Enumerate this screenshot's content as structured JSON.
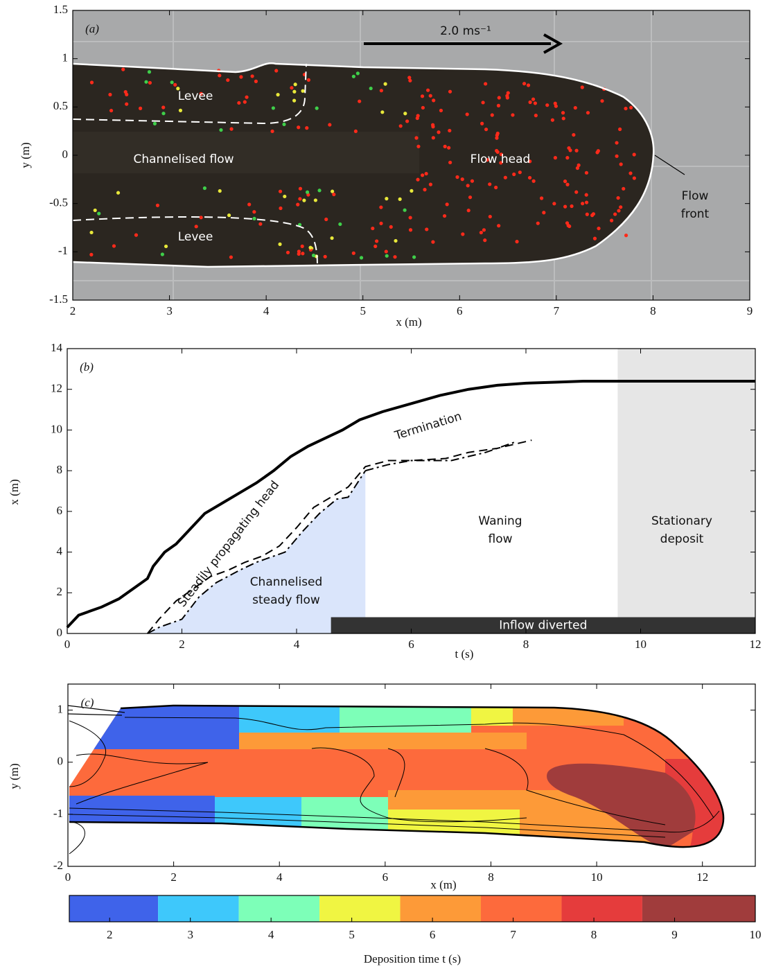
{
  "chart_data": [
    {
      "type": "photo",
      "label": "(a)",
      "xlabel": "x (m)",
      "ylabel": "y (m)",
      "xlim": [
        2,
        9
      ],
      "ylim": [
        -1.5,
        1.5
      ],
      "xticks": [
        2,
        3,
        4,
        5,
        6,
        7,
        8,
        9
      ],
      "yticks": [
        -1.5,
        -1,
        -0.5,
        0,
        0.5,
        1,
        1.5
      ],
      "annotations": [
        [
          "Levee"
        ],
        [
          "Levee"
        ],
        [
          "Channelised flow"
        ],
        [
          "Flow head"
        ],
        [
          "Flow",
          "front"
        ],
        [
          "2.0 ms⁻¹"
        ]
      ]
    },
    {
      "type": "line",
      "label": "(b)",
      "xlabel": "t (s)",
      "ylabel": "x (m)",
      "xlim": [
        0,
        12
      ],
      "ylim": [
        0,
        14
      ],
      "xticks": [
        0,
        2,
        4,
        6,
        8,
        10,
        12
      ],
      "yticks": [
        0,
        2,
        4,
        6,
        8,
        10,
        12,
        14
      ],
      "series": [
        {
          "color": "#000000",
          "dash": "solid",
          "width": 4,
          "x": [
            0,
            0.2,
            0.6,
            0.9,
            1.2,
            1.4,
            1.5,
            1.7,
            1.9,
            2.1,
            2.4,
            2.7,
            3.0,
            3.3,
            3.6,
            3.9,
            4.2,
            4.5,
            4.8,
            5.1,
            5.5,
            6,
            6.5,
            7,
            7.5,
            8,
            8.5,
            9,
            9.5,
            10,
            11,
            12
          ],
          "values": [
            0.3,
            0.9,
            1.3,
            1.7,
            2.3,
            2.7,
            3.3,
            4.0,
            4.4,
            5.0,
            5.9,
            6.4,
            6.9,
            7.4,
            8.0,
            8.7,
            9.2,
            9.6,
            10.0,
            10.5,
            10.9,
            11.3,
            11.7,
            12.0,
            12.2,
            12.3,
            12.35,
            12.4,
            12.4,
            12.4,
            12.4,
            12.4
          ]
        },
        {
          "color": "#000000",
          "dash": "dashed",
          "width": 2,
          "x": [
            1.4,
            1.6,
            1.9,
            2.2,
            2.5,
            2.8,
            3.1,
            3.4,
            3.7,
            4.0,
            4.3,
            4.6,
            4.9,
            5.2,
            5.6,
            6.0,
            6.6,
            7.0,
            7.5,
            8.1
          ],
          "values": [
            0,
            0.7,
            1.6,
            2.2,
            2.8,
            3.1,
            3.5,
            3.8,
            4.3,
            5.2,
            6.2,
            6.7,
            7.2,
            8.2,
            8.5,
            8.5,
            8.6,
            8.9,
            9.1,
            9.5
          ]
        },
        {
          "color": "#000000",
          "dash": "dashdot",
          "width": 2,
          "fill": "#dae5fb",
          "x": [
            1.4,
            1.6,
            2.0,
            2.3,
            2.6,
            3.0,
            3.3,
            3.6,
            3.8,
            4.1,
            4.4,
            4.7,
            4.9,
            5.2
          ],
          "values": [
            0,
            0.3,
            0.7,
            1.8,
            2.5,
            3.1,
            3.5,
            3.8,
            4.0,
            5.0,
            5.9,
            6.6,
            6.7,
            8.0
          ]
        },
        {
          "color": "#000000",
          "dash": "dashdot",
          "width": 2,
          "x": [
            5.2,
            5.6,
            6.0,
            6.7,
            7.3,
            7.8
          ],
          "values": [
            8.0,
            8.3,
            8.5,
            8.5,
            8.9,
            9.4
          ]
        }
      ],
      "spans": [
        {
          "x": [
            9.6,
            12
          ],
          "color": "#e6e6e6"
        }
      ],
      "bars": [
        {
          "label": "Inflow diverted",
          "x": [
            4.6,
            12
          ],
          "y": [
            0,
            0.8
          ],
          "color": "#333333"
        }
      ],
      "annotations": [
        [
          "Steadily propagating head"
        ],
        [
          "Termination"
        ],
        [
          "Channelised",
          "steady flow"
        ],
        [
          "Waning",
          "flow"
        ],
        [
          "Stationary",
          "deposit"
        ]
      ]
    },
    {
      "type": "contour",
      "label": "(c)",
      "xlabel": "x (m)",
      "ylabel": "y (m)",
      "xlim": [
        0,
        13
      ],
      "ylim": [
        -2,
        1.5
      ],
      "xticks": [
        0,
        2,
        4,
        6,
        8,
        10,
        12
      ],
      "yticks": [
        -2,
        -1,
        0,
        1
      ],
      "colorbar": {
        "label": "Deposition time t (s)",
        "lim": [
          1.5,
          10
        ],
        "levels": [
          1.5,
          2.6,
          3.6,
          4.6,
          5.6,
          6.6,
          7.6,
          8.6,
          10
        ],
        "colors": [
          "#3f63ea",
          "#3ec8fb",
          "#7dffb8",
          "#f0f542",
          "#fd9a38",
          "#fd6a3c",
          "#e53c3c",
          "#a03c3c"
        ],
        "ticks": [
          2,
          3,
          4,
          5,
          6,
          7,
          8,
          9,
          10
        ]
      }
    }
  ]
}
